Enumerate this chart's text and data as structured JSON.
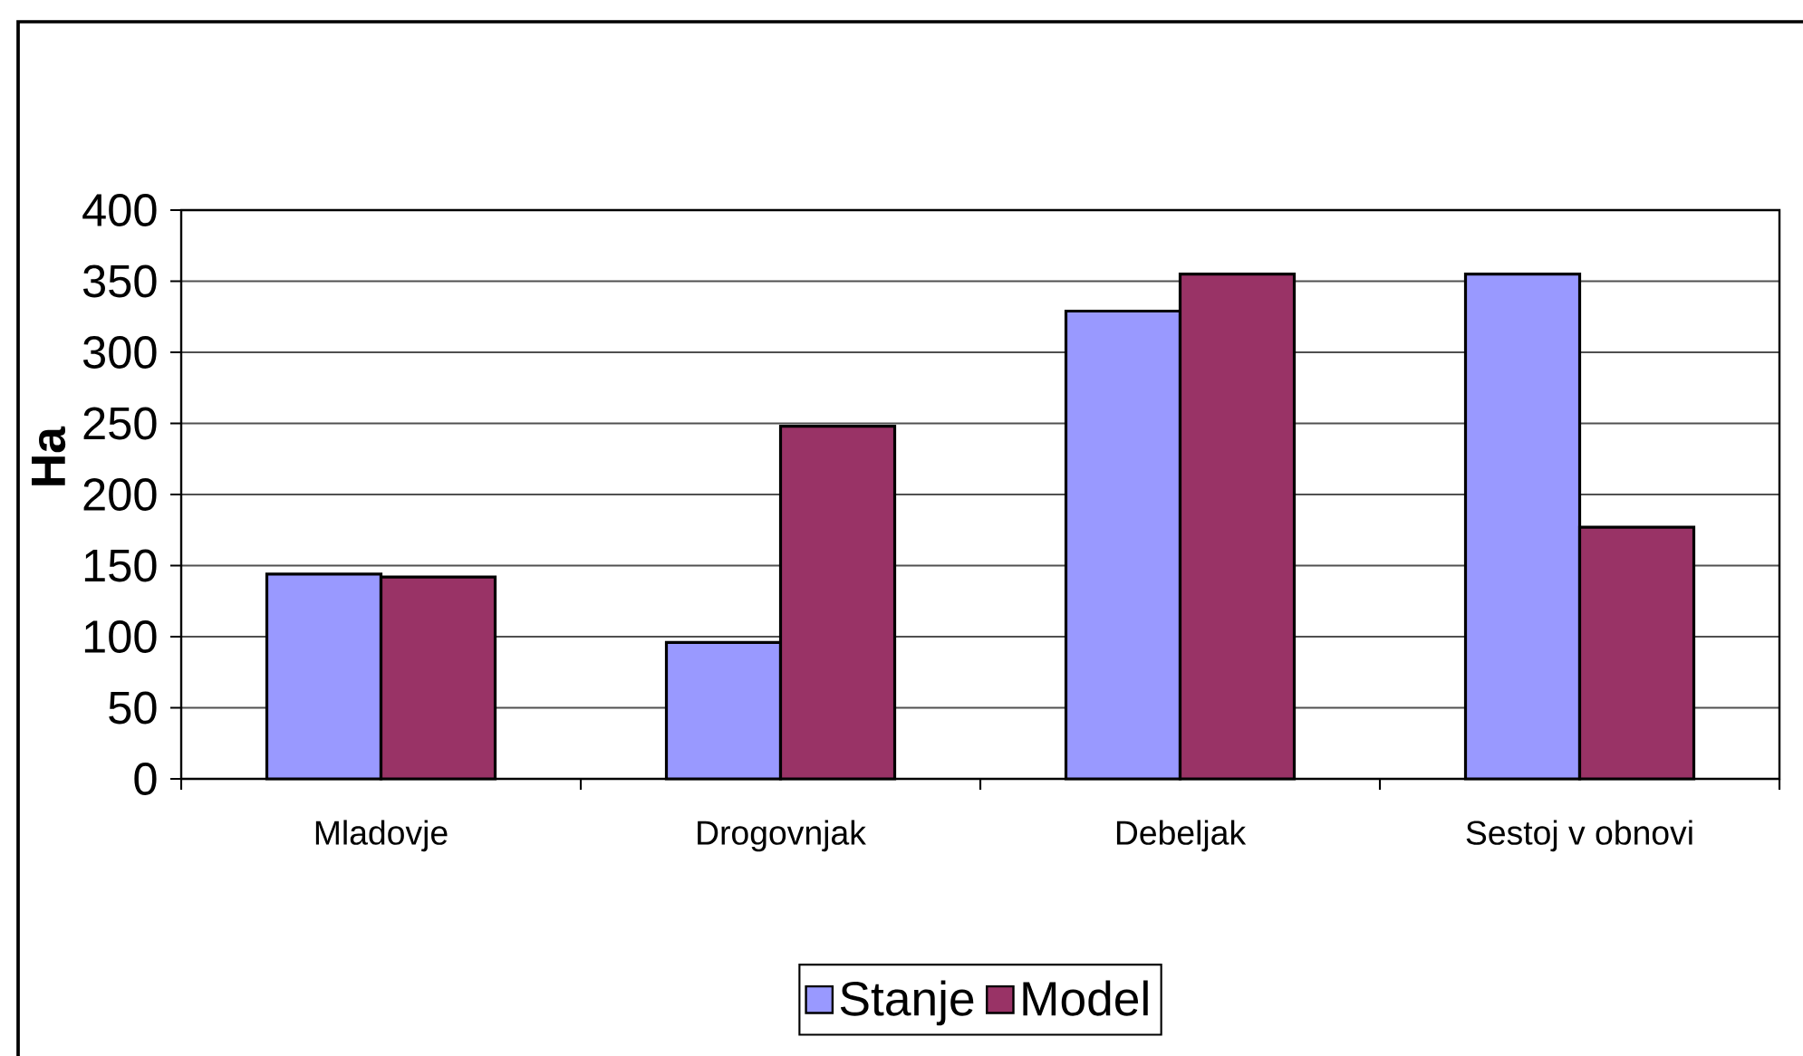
{
  "chart_data": {
    "type": "bar",
    "ylabel": "Ha",
    "categories": [
      "Mladovje",
      "Drogovnjak",
      "Debeljak",
      "Sestoj v obnovi"
    ],
    "series": [
      {
        "name": "Stanje",
        "color": "#9999ff",
        "values": [
          144,
          96,
          329,
          355
        ]
      },
      {
        "name": "Model",
        "color": "#993366",
        "values": [
          142,
          248,
          355,
          177
        ]
      }
    ],
    "ylim": [
      0,
      400
    ],
    "yticks": [
      0,
      50,
      100,
      150,
      200,
      250,
      300,
      350,
      400
    ],
    "grid": "y",
    "legend": "bottom"
  }
}
